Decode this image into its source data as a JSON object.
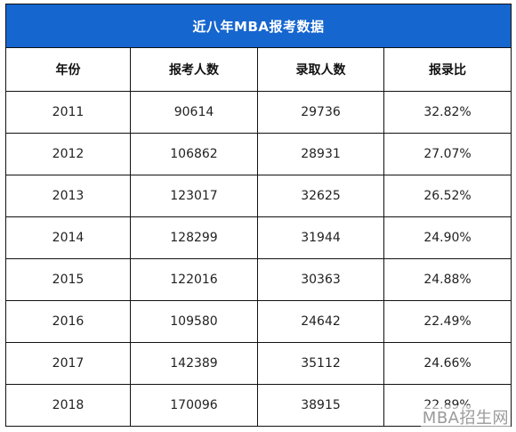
{
  "table": {
    "title": "近八年MBA报考数据",
    "headers": [
      "年份",
      "报考人数",
      "录取人数",
      "报录比"
    ],
    "rows": [
      [
        "2011",
        "90614",
        "29736",
        "32.82%"
      ],
      [
        "2012",
        "106862",
        "28931",
        "27.07%"
      ],
      [
        "2013",
        "123017",
        "32625",
        "26.52%"
      ],
      [
        "2014",
        "128299",
        "31944",
        "24.90%"
      ],
      [
        "2015",
        "122016",
        "30363",
        "24.88%"
      ],
      [
        "2016",
        "109580",
        "24642",
        "22.49%"
      ],
      [
        "2017",
        "142389",
        "35112",
        "24.66%"
      ],
      [
        "2018",
        "170096",
        "38915",
        "22.89%"
      ]
    ]
  },
  "watermark": "MBA招生网",
  "colors": {
    "title_bg": "#1666cf",
    "title_text": "#ffffff",
    "border": "#111111"
  }
}
